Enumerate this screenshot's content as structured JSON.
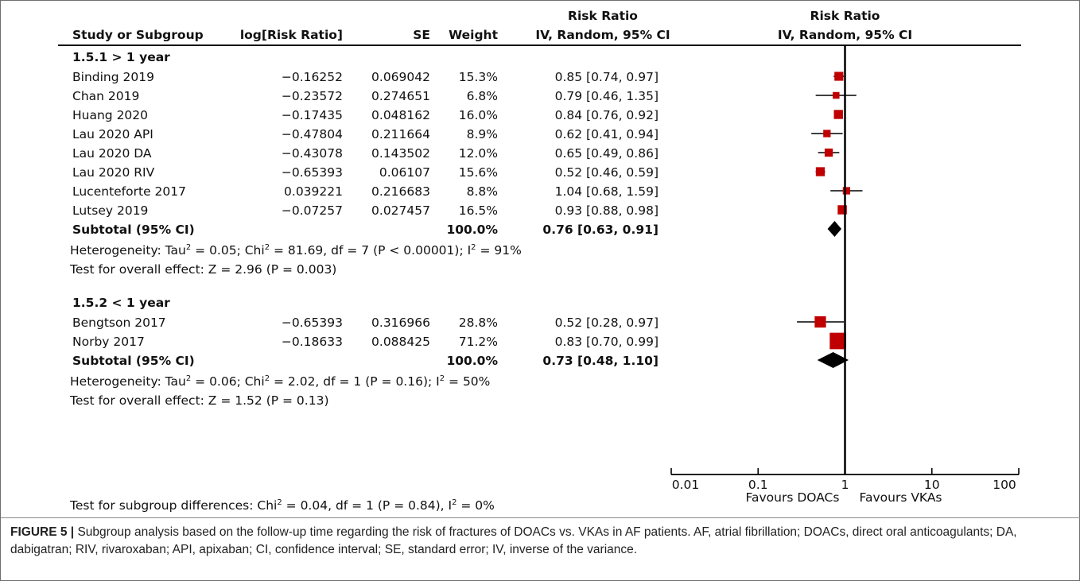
{
  "chart_data": {
    "type": "forest",
    "scale": "log",
    "xlim": [
      0.01,
      100
    ],
    "x_ticks": [
      "0.01",
      "0.1",
      "1",
      "10",
      "100"
    ],
    "x_tick_values": [
      0.01,
      0.1,
      1,
      10,
      100
    ],
    "favours_left": "Favours DOACs",
    "favours_right": "Favours VKAs",
    "header": {
      "study": "Study or Subgroup",
      "logrr": "log[Risk Ratio]",
      "se": "SE",
      "weight": "Weight",
      "rr_top": "Risk Ratio",
      "rr_method": "IV, Random, 95% CI",
      "plot_top": "Risk Ratio",
      "plot_method": "IV, Random, 95% CI"
    },
    "subgroups": [
      {
        "title": "1.5.1 > 1 year",
        "studies": [
          {
            "name": "Binding 2019",
            "logrr": "−0.16252",
            "se": "0.069042",
            "weight": "15.3%",
            "ci_text": "0.85 [0.74, 0.97]",
            "rr": 0.85,
            "lo": 0.74,
            "hi": 0.97,
            "w": 15.3
          },
          {
            "name": "Chan 2019",
            "logrr": "−0.23572",
            "se": "0.274651",
            "weight": "6.8%",
            "ci_text": "0.79 [0.46, 1.35]",
            "rr": 0.79,
            "lo": 0.46,
            "hi": 1.35,
            "w": 6.8
          },
          {
            "name": "Huang 2020",
            "logrr": "−0.17435",
            "se": "0.048162",
            "weight": "16.0%",
            "ci_text": "0.84 [0.76, 0.92]",
            "rr": 0.84,
            "lo": 0.76,
            "hi": 0.92,
            "w": 16.0
          },
          {
            "name": "Lau 2020 API",
            "logrr": "−0.47804",
            "se": "0.211664",
            "weight": "8.9%",
            "ci_text": "0.62 [0.41, 0.94]",
            "rr": 0.62,
            "lo": 0.41,
            "hi": 0.94,
            "w": 8.9
          },
          {
            "name": "Lau 2020 DA",
            "logrr": "−0.43078",
            "se": "0.143502",
            "weight": "12.0%",
            "ci_text": "0.65 [0.49, 0.86]",
            "rr": 0.65,
            "lo": 0.49,
            "hi": 0.86,
            "w": 12.0
          },
          {
            "name": "Lau 2020 RIV",
            "logrr": "−0.65393",
            "se": "0.06107",
            "weight": "15.6%",
            "ci_text": "0.52 [0.46, 0.59]",
            "rr": 0.52,
            "lo": 0.46,
            "hi": 0.59,
            "w": 15.6
          },
          {
            "name": "Lucenteforte 2017",
            "logrr": "0.039221",
            "se": "0.216683",
            "weight": "8.8%",
            "ci_text": "1.04 [0.68, 1.59]",
            "rr": 1.04,
            "lo": 0.68,
            "hi": 1.59,
            "w": 8.8
          },
          {
            "name": "Lutsey 2019",
            "logrr": "−0.07257",
            "se": "0.027457",
            "weight": "16.5%",
            "ci_text": "0.93 [0.88, 0.98]",
            "rr": 0.93,
            "lo": 0.88,
            "hi": 0.98,
            "w": 16.5
          }
        ],
        "subtotal": {
          "label": "Subtotal (95% CI)",
          "weight": "100.0%",
          "ci_text": "0.76 [0.63, 0.91]",
          "rr": 0.76,
          "lo": 0.63,
          "hi": 0.91
        },
        "heterogeneity": "Heterogeneity: Tau² = 0.05; Chi² = 81.69, df = 7 (P < 0.00001); I² = 91%",
        "overall": "Test for overall effect: Z = 2.96 (P = 0.003)"
      },
      {
        "title": "1.5.2 < 1 year",
        "studies": [
          {
            "name": "Bengtson 2017",
            "logrr": "−0.65393",
            "se": "0.316966",
            "weight": "28.8%",
            "ci_text": "0.52 [0.28, 0.97]",
            "rr": 0.52,
            "lo": 0.28,
            "hi": 0.97,
            "w": 28.8
          },
          {
            "name": "Norby 2017",
            "logrr": "−0.18633",
            "se": "0.088425",
            "weight": "71.2%",
            "ci_text": "0.83 [0.70, 0.99]",
            "rr": 0.83,
            "lo": 0.7,
            "hi": 0.99,
            "w": 71.2
          }
        ],
        "subtotal": {
          "label": "Subtotal (95% CI)",
          "weight": "100.0%",
          "ci_text": "0.73 [0.48, 1.10]",
          "rr": 0.73,
          "lo": 0.48,
          "hi": 1.1
        },
        "heterogeneity": "Heterogeneity: Tau² = 0.06; Chi² = 2.02, df = 1 (P = 0.16); I² = 50%",
        "overall": "Test for overall effect: Z = 1.52 (P = 0.13)"
      }
    ],
    "subgroup_test": "Test for subgroup differences: Chi² = 0.04, df = 1 (P = 0.84), I² = 0%",
    "colors": {
      "square": "#c00000",
      "diamond": "#000000",
      "line": "#000000"
    }
  },
  "caption": {
    "label": "FIGURE 5 |",
    "text": "Subgroup analysis based on the follow-up time regarding the risk of fractures of DOACs vs. VKAs in AF patients. AF, atrial fibrillation; DOACs, direct oral anticoagulants; DA, dabigatran; RIV, rivaroxaban; API, apixaban; CI, confidence interval; SE, standard error; IV, inverse of the variance."
  }
}
